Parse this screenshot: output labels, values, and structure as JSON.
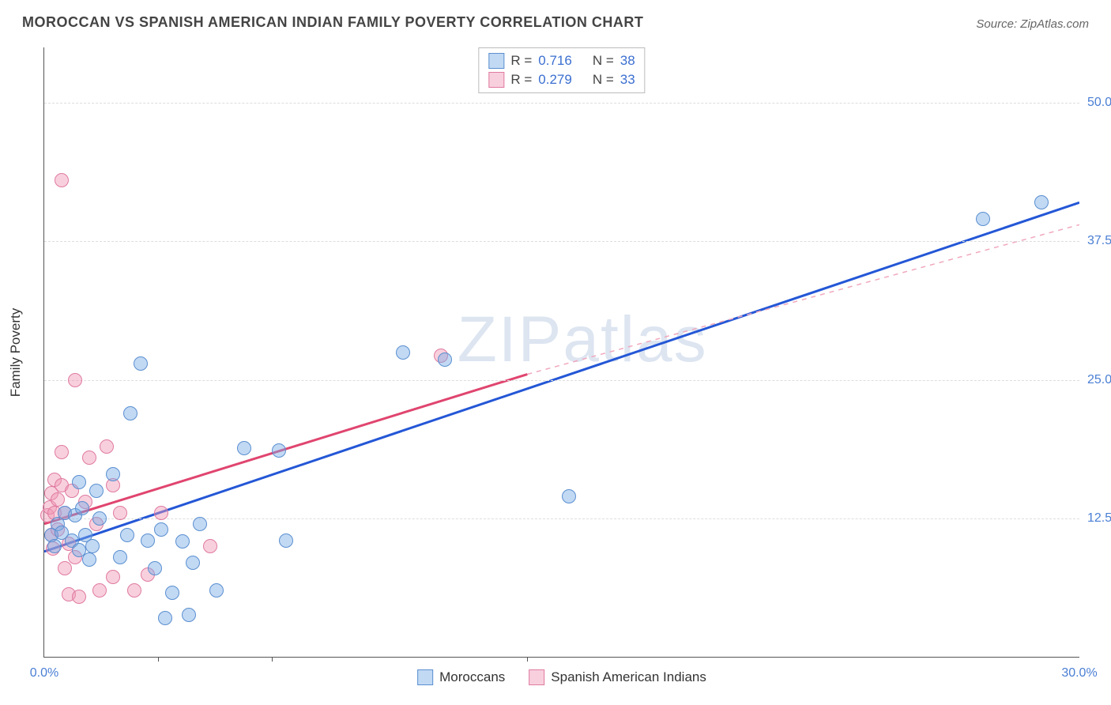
{
  "title": "MOROCCAN VS SPANISH AMERICAN INDIAN FAMILY POVERTY CORRELATION CHART",
  "source_label": "Source:",
  "source_value": "ZipAtlas.com",
  "watermark": "ZIPatlas",
  "ylabel": "Family Poverty",
  "chart": {
    "type": "scatter",
    "xlim": [
      0,
      30
    ],
    "ylim": [
      0,
      55
    ],
    "xtick_labels": [
      "0.0%",
      "30.0%"
    ],
    "xtick_positions": [
      0,
      30
    ],
    "xtick_minor": [
      3.3,
      6.6,
      14.0
    ],
    "ytick_labels": [
      "12.5%",
      "25.0%",
      "37.5%",
      "50.0%"
    ],
    "ytick_positions": [
      12.5,
      25.0,
      37.5,
      50.0
    ],
    "grid_color": "#dddddd",
    "axis_color": "#555555",
    "background": "#ffffff",
    "label_color": "#4a7fd4",
    "point_radius": 9,
    "point_border": 1.5,
    "series": [
      {
        "name": "Moroccans",
        "fill": "rgba(120,170,230,0.45)",
        "stroke": "#5a8fd0",
        "trend": {
          "x1": 0,
          "y1": 9.5,
          "x2": 30,
          "y2": 41,
          "stroke": "#2457d6",
          "width": 3,
          "dash": "none",
          "extend_x2": 30,
          "extend_y2": 41
        },
        "points": [
          [
            0.2,
            11.0
          ],
          [
            0.3,
            10.0
          ],
          [
            0.4,
            12.0
          ],
          [
            0.5,
            11.2
          ],
          [
            0.6,
            13.0
          ],
          [
            0.8,
            10.5
          ],
          [
            0.9,
            12.8
          ],
          [
            1.0,
            9.6
          ],
          [
            1.0,
            15.8
          ],
          [
            1.1,
            13.4
          ],
          [
            1.2,
            11.0
          ],
          [
            1.3,
            8.8
          ],
          [
            1.4,
            10.0
          ],
          [
            1.5,
            15.0
          ],
          [
            1.6,
            12.5
          ],
          [
            2.0,
            16.5
          ],
          [
            2.2,
            9.0
          ],
          [
            2.4,
            11.0
          ],
          [
            2.5,
            22.0
          ],
          [
            2.8,
            26.5
          ],
          [
            3.0,
            10.5
          ],
          [
            3.2,
            8.0
          ],
          [
            3.4,
            11.5
          ],
          [
            3.5,
            3.5
          ],
          [
            3.7,
            5.8
          ],
          [
            4.0,
            10.4
          ],
          [
            4.2,
            3.8
          ],
          [
            4.3,
            8.5
          ],
          [
            4.5,
            12.0
          ],
          [
            5.0,
            6.0
          ],
          [
            5.8,
            18.8
          ],
          [
            6.8,
            18.6
          ],
          [
            7.0,
            10.5
          ],
          [
            10.4,
            27.5
          ],
          [
            11.6,
            26.8
          ],
          [
            15.2,
            14.5
          ],
          [
            27.2,
            39.5
          ],
          [
            28.9,
            41
          ]
        ]
      },
      {
        "name": "Spanish American Indians",
        "fill": "rgba(240,150,180,0.45)",
        "stroke": "#e07aa0",
        "trend": {
          "x1": 0,
          "y1": 12.0,
          "x2": 14,
          "y2": 25.5,
          "stroke": "#e0456f",
          "width": 3,
          "dash": "none",
          "extend_x2": 30,
          "extend_y2": 39,
          "extend_stroke": "#f0a8bd",
          "extend_dash": "6,6",
          "extend_width": 1.5
        },
        "points": [
          [
            0.1,
            12.8
          ],
          [
            0.15,
            13.5
          ],
          [
            0.2,
            11.0
          ],
          [
            0.2,
            14.8
          ],
          [
            0.25,
            9.8
          ],
          [
            0.3,
            13.0
          ],
          [
            0.3,
            16.0
          ],
          [
            0.4,
            14.2
          ],
          [
            0.4,
            11.5
          ],
          [
            0.5,
            15.5
          ],
          [
            0.5,
            18.5
          ],
          [
            0.5,
            43.0
          ],
          [
            0.6,
            13.0
          ],
          [
            0.6,
            8.0
          ],
          [
            0.7,
            10.2
          ],
          [
            0.7,
            5.6
          ],
          [
            0.8,
            15.0
          ],
          [
            0.9,
            9.0
          ],
          [
            0.9,
            25.0
          ],
          [
            1.0,
            5.4
          ],
          [
            1.2,
            14.0
          ],
          [
            1.3,
            18.0
          ],
          [
            1.5,
            12.0
          ],
          [
            1.6,
            6.0
          ],
          [
            1.8,
            19.0
          ],
          [
            2.0,
            7.2
          ],
          [
            2.0,
            15.5
          ],
          [
            2.2,
            13.0
          ],
          [
            2.6,
            6.0
          ],
          [
            3.0,
            7.4
          ],
          [
            3.4,
            13.0
          ],
          [
            4.8,
            10.0
          ],
          [
            11.5,
            27.2
          ]
        ]
      }
    ]
  },
  "corr_legend": {
    "rows": [
      {
        "swatch_fill": "rgba(120,170,230,0.45)",
        "swatch_stroke": "#5a8fd0",
        "r_label": "R  =",
        "r_value": "0.716",
        "n_label": "N  =",
        "n_value": "38"
      },
      {
        "swatch_fill": "rgba(240,150,180,0.45)",
        "swatch_stroke": "#e07aa0",
        "r_label": "R  =",
        "r_value": "0.279",
        "n_label": "N  =",
        "n_value": "33"
      }
    ]
  },
  "series_legend": [
    {
      "swatch_fill": "rgba(120,170,230,0.45)",
      "swatch_stroke": "#5a8fd0",
      "label": "Moroccans"
    },
    {
      "swatch_fill": "rgba(240,150,180,0.45)",
      "swatch_stroke": "#e07aa0",
      "label": "Spanish American Indians"
    }
  ]
}
